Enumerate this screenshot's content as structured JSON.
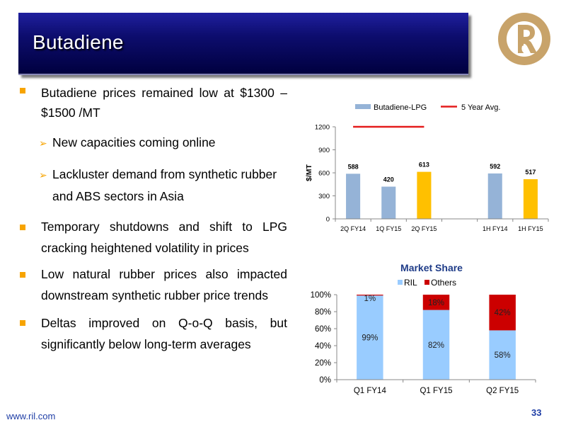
{
  "slide": {
    "title": "Butadiene",
    "bullets": [
      {
        "line1": "Butadiene prices remained low at $1300 –",
        "line2": "$1500 /MT"
      },
      {
        "line1": "Temporary shutdowns and shift to LPG",
        "line2": "cracking heightened volatility in prices"
      },
      {
        "line1": "Low natural rubber prices also impacted",
        "line2": "downstream synthetic rubber price trends"
      },
      {
        "line1": "Deltas improved on Q-o-Q basis, but",
        "line2": "significantly below long-term averages"
      }
    ],
    "sub_bullets": [
      {
        "line1": "New capacities coming online"
      },
      {
        "line1": "Lackluster demand from synthetic rubber",
        "line2": "and ABS sectors in Asia"
      }
    ],
    "footer_url": "www.ril.com",
    "page_number": "33",
    "colors": {
      "title_bar": "#0d0d6e",
      "bullet": "#f7a400",
      "logo": "#c8a36a",
      "footer": "#1f3ea6"
    }
  },
  "chart_data": [
    {
      "type": "bar",
      "title": "",
      "ylabel": "$/MT",
      "ylim": [
        0,
        1200
      ],
      "yticks": [
        0,
        300,
        600,
        900,
        1200
      ],
      "categories": [
        "2Q FY14",
        "1Q FY15",
        "2Q FY15",
        "",
        "1H FY14",
        "1H FY15"
      ],
      "values": [
        588,
        420,
        613,
        null,
        592,
        517
      ],
      "value_labels": [
        "588",
        "420",
        "613",
        "",
        "592",
        "517"
      ],
      "bar_colors": [
        "#95b3d7",
        "#95b3d7",
        "#ffc000",
        null,
        "#95b3d7",
        "#ffc000"
      ],
      "legend": [
        "Butadiene-LPG",
        "5 Year Avg."
      ],
      "legend_placement": "top",
      "five_year_avg": {
        "value": 1200,
        "from": "2Q FY14",
        "to": "2Q FY15",
        "color": "#e41c1c"
      },
      "grid": false
    },
    {
      "type": "bar",
      "stacked": true,
      "title": "Market Share",
      "categories": [
        "Q1 FY14",
        "Q1 FY15",
        "Q2 FY15"
      ],
      "series": [
        {
          "name": "RIL",
          "values": [
            99,
            82,
            58
          ],
          "labels": [
            "99%",
            "82%",
            "58%"
          ],
          "color": "#99ccff"
        },
        {
          "name": "Others",
          "values": [
            1,
            18,
            42
          ],
          "labels": [
            "1%",
            "18%",
            "42%"
          ],
          "color": "#cc0000"
        }
      ],
      "ylim": [
        0,
        100
      ],
      "yticks": [
        "0%",
        "20%",
        "40%",
        "60%",
        "80%",
        "100%"
      ],
      "legend_placement": "top",
      "grid": false
    }
  ]
}
